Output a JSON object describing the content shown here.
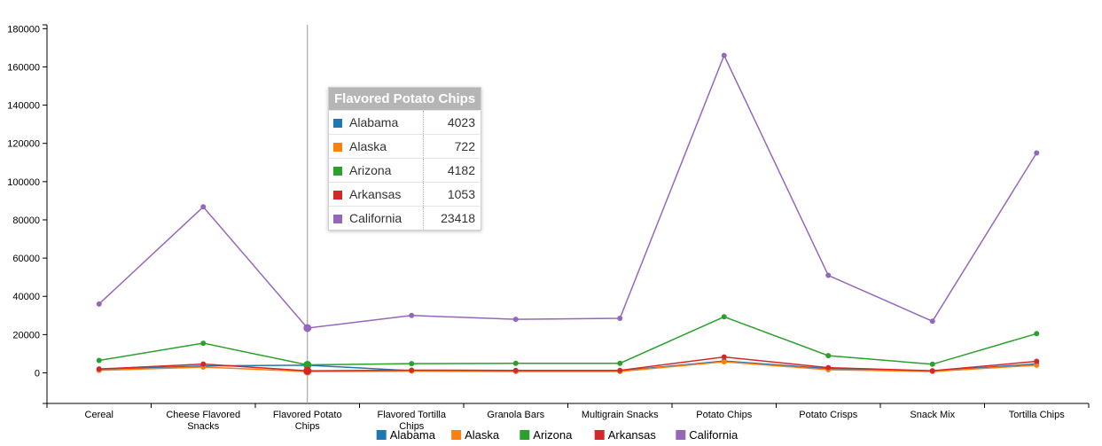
{
  "chart_data": {
    "type": "line",
    "categories": [
      "Cereal",
      "Cheese Flavored Snacks",
      "Flavored Potato Chips",
      "Flavored Tortilla Chips",
      "Granola Bars",
      "Multigrain Snacks",
      "Potato Chips",
      "Potato Crisps",
      "Snack Mix",
      "Tortilla Chips"
    ],
    "ylim": [
      -16000,
      182000
    ],
    "yticks": [
      0,
      20000,
      40000,
      60000,
      80000,
      100000,
      120000,
      140000,
      160000,
      180000
    ],
    "series": [
      {
        "name": "Alabama",
        "color": "#1f77b4",
        "values": [
          1800,
          3600,
          4023,
          1100,
          900,
          1000,
          6200,
          2200,
          900,
          4700
        ]
      },
      {
        "name": "Alaska",
        "color": "#ff7f0e",
        "values": [
          1300,
          3000,
          722,
          900,
          700,
          700,
          5800,
          1600,
          700,
          4000
        ]
      },
      {
        "name": "Arizona",
        "color": "#2ca02c",
        "values": [
          6500,
          15500,
          4182,
          4800,
          5000,
          5000,
          29300,
          9000,
          4500,
          20500
        ]
      },
      {
        "name": "Arkansas",
        "color": "#d62728",
        "values": [
          2000,
          4600,
          1053,
          1400,
          1300,
          1300,
          8300,
          2700,
          1100,
          6000
        ]
      },
      {
        "name": "California",
        "color": "#9467bd",
        "values": [
          36000,
          86800,
          23418,
          30000,
          28000,
          28500,
          166000,
          51000,
          27000,
          115000
        ]
      }
    ],
    "highlight_index": 2,
    "grid": false,
    "legend_position": "bottom"
  },
  "tooltip": {
    "title": "Flavored Potato Chips",
    "rows": [
      {
        "name": "Alabama",
        "value": "4023",
        "color": "#1f77b4"
      },
      {
        "name": "Alaska",
        "value": "722",
        "color": "#ff7f0e"
      },
      {
        "name": "Arizona",
        "value": "4182",
        "color": "#2ca02c"
      },
      {
        "name": "Arkansas",
        "value": "1053",
        "color": "#d62728"
      },
      {
        "name": "California",
        "value": "23418",
        "color": "#9467bd"
      }
    ]
  }
}
